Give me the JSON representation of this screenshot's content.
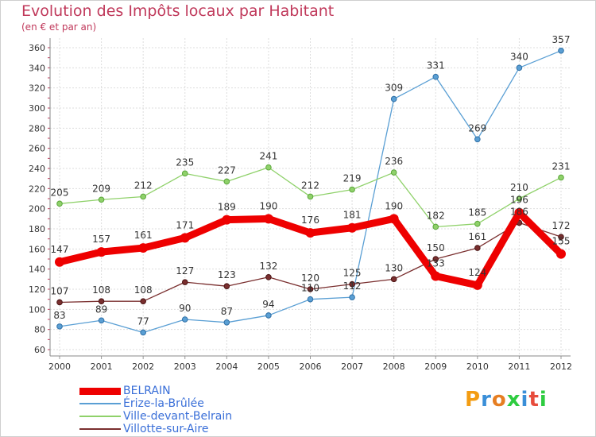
{
  "title": "Evolution des Impôts locaux par Habitant",
  "subtitle": "(en € et par an)",
  "logo": "Proxiti",
  "chart_data": {
    "type": "line",
    "title": "Evolution des Impôts locaux par Habitant",
    "subtitle": "(en € et par an)",
    "xlabel": "",
    "ylabel": "",
    "ylim": [
      60,
      360
    ],
    "ytick_step": 20,
    "grid": true,
    "legend": "bottom-left",
    "categories": [
      "2000",
      "2001",
      "2002",
      "2003",
      "2004",
      "2005",
      "2006",
      "2007",
      "2008",
      "2009",
      "2010",
      "2011",
      "2012"
    ],
    "series": [
      {
        "name": "BELRAIN",
        "color": "#ee0000",
        "values": [
          147,
          157,
          161,
          171,
          189,
          190,
          176,
          181,
          190,
          133,
          124,
          196,
          155
        ]
      },
      {
        "name": "Érize-la-Brûlée",
        "color": "#5a9fd4",
        "values": [
          83,
          89,
          77,
          90,
          87,
          94,
          110,
          112,
          309,
          331,
          269,
          340,
          357
        ]
      },
      {
        "name": "Ville-devant-Belrain",
        "color": "#8fd16a",
        "values": [
          205,
          209,
          212,
          235,
          227,
          241,
          212,
          219,
          236,
          182,
          185,
          210,
          231
        ]
      },
      {
        "name": "Villotte-sur-Aire",
        "color": "#7a2f2f",
        "values": [
          107,
          108,
          108,
          127,
          123,
          132,
          120,
          125,
          130,
          150,
          161,
          186,
          172
        ]
      }
    ]
  }
}
